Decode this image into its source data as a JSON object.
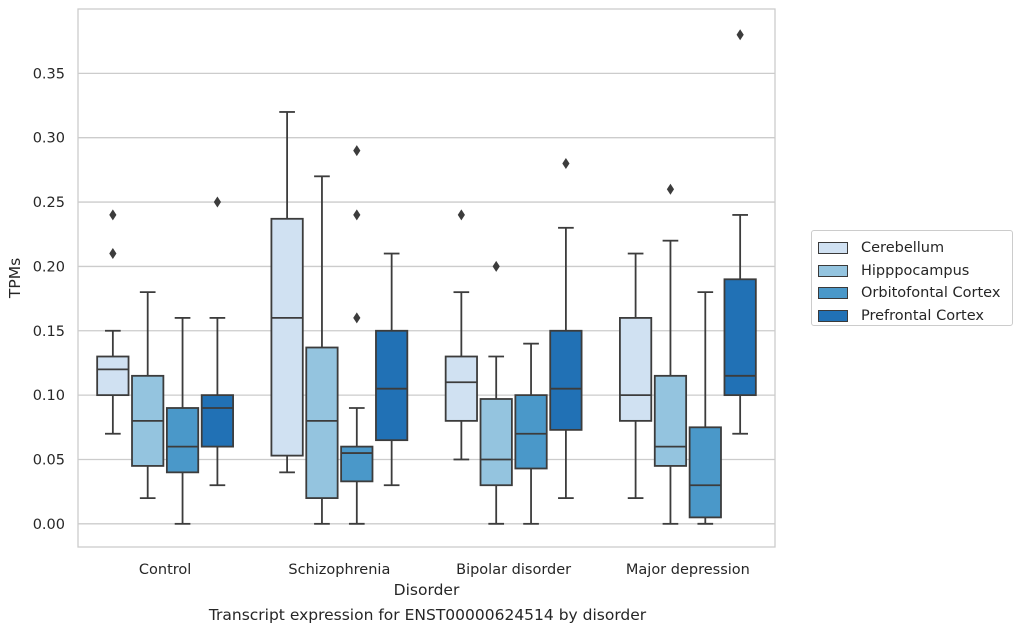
{
  "chart_data": {
    "type": "box",
    "xlabel": "Disorder",
    "ylabel": "TPMs",
    "caption": "Transcript expression for ENST00000624514 by disorder",
    "ylim": [
      -0.018,
      0.4
    ],
    "yticks": [
      0.0,
      0.05,
      0.1,
      0.15,
      0.2,
      0.25,
      0.3,
      0.35
    ],
    "ytick_labels": [
      "0.00",
      "0.05",
      "0.10",
      "0.15",
      "0.20",
      "0.25",
      "0.30",
      "0.35"
    ],
    "grid": "horizontal",
    "legend_position": "outside-right",
    "categories": [
      "Control",
      "Schizophrenia",
      "Bipolar disorder",
      "Major depression"
    ],
    "series": [
      {
        "name": "Cerebellum",
        "color": "#d0e1f2",
        "boxes": [
          {
            "whislo": 0.07,
            "q1": 0.1,
            "med": 0.12,
            "q3": 0.13,
            "whishi": 0.15,
            "fliers": [
              0.21,
              0.24
            ]
          },
          {
            "whislo": 0.04,
            "q1": 0.053,
            "med": 0.16,
            "q3": 0.237,
            "whishi": 0.32,
            "fliers": []
          },
          {
            "whislo": 0.05,
            "q1": 0.08,
            "med": 0.11,
            "q3": 0.13,
            "whishi": 0.18,
            "fliers": [
              0.24
            ]
          },
          {
            "whislo": 0.02,
            "q1": 0.08,
            "med": 0.1,
            "q3": 0.16,
            "whishi": 0.21,
            "fliers": []
          }
        ]
      },
      {
        "name": "Hipppocampus",
        "color": "#94c4df",
        "boxes": [
          {
            "whislo": 0.02,
            "q1": 0.045,
            "med": 0.08,
            "q3": 0.115,
            "whishi": 0.18,
            "fliers": []
          },
          {
            "whislo": 0.0,
            "q1": 0.02,
            "med": 0.08,
            "q3": 0.137,
            "whishi": 0.27,
            "fliers": []
          },
          {
            "whislo": 0.0,
            "q1": 0.03,
            "med": 0.05,
            "q3": 0.097,
            "whishi": 0.13,
            "fliers": [
              0.2
            ]
          },
          {
            "whislo": 0.0,
            "q1": 0.045,
            "med": 0.06,
            "q3": 0.115,
            "whishi": 0.22,
            "fliers": [
              0.26
            ]
          }
        ]
      },
      {
        "name": "Orbitofontal Cortex",
        "color": "#4a98c9",
        "boxes": [
          {
            "whislo": 0.0,
            "q1": 0.04,
            "med": 0.06,
            "q3": 0.09,
            "whishi": 0.16,
            "fliers": []
          },
          {
            "whislo": 0.0,
            "q1": 0.033,
            "med": 0.055,
            "q3": 0.06,
            "whishi": 0.09,
            "fliers": [
              0.16,
              0.24,
              0.29
            ]
          },
          {
            "whislo": 0.0,
            "q1": 0.043,
            "med": 0.07,
            "q3": 0.1,
            "whishi": 0.14,
            "fliers": []
          },
          {
            "whislo": 0.0,
            "q1": 0.005,
            "med": 0.03,
            "q3": 0.075,
            "whishi": 0.18,
            "fliers": []
          }
        ]
      },
      {
        "name": "Prefrontal Cortex",
        "color": "#2171b5",
        "boxes": [
          {
            "whislo": 0.03,
            "q1": 0.06,
            "med": 0.09,
            "q3": 0.1,
            "whishi": 0.16,
            "fliers": [
              0.25
            ]
          },
          {
            "whislo": 0.03,
            "q1": 0.065,
            "med": 0.105,
            "q3": 0.15,
            "whishi": 0.21,
            "fliers": []
          },
          {
            "whislo": 0.02,
            "q1": 0.073,
            "med": 0.105,
            "q3": 0.15,
            "whishi": 0.23,
            "fliers": [
              0.28
            ]
          },
          {
            "whislo": 0.07,
            "q1": 0.1,
            "med": 0.115,
            "q3": 0.19,
            "whishi": 0.24,
            "fliers": [
              0.38
            ]
          }
        ]
      }
    ]
  }
}
